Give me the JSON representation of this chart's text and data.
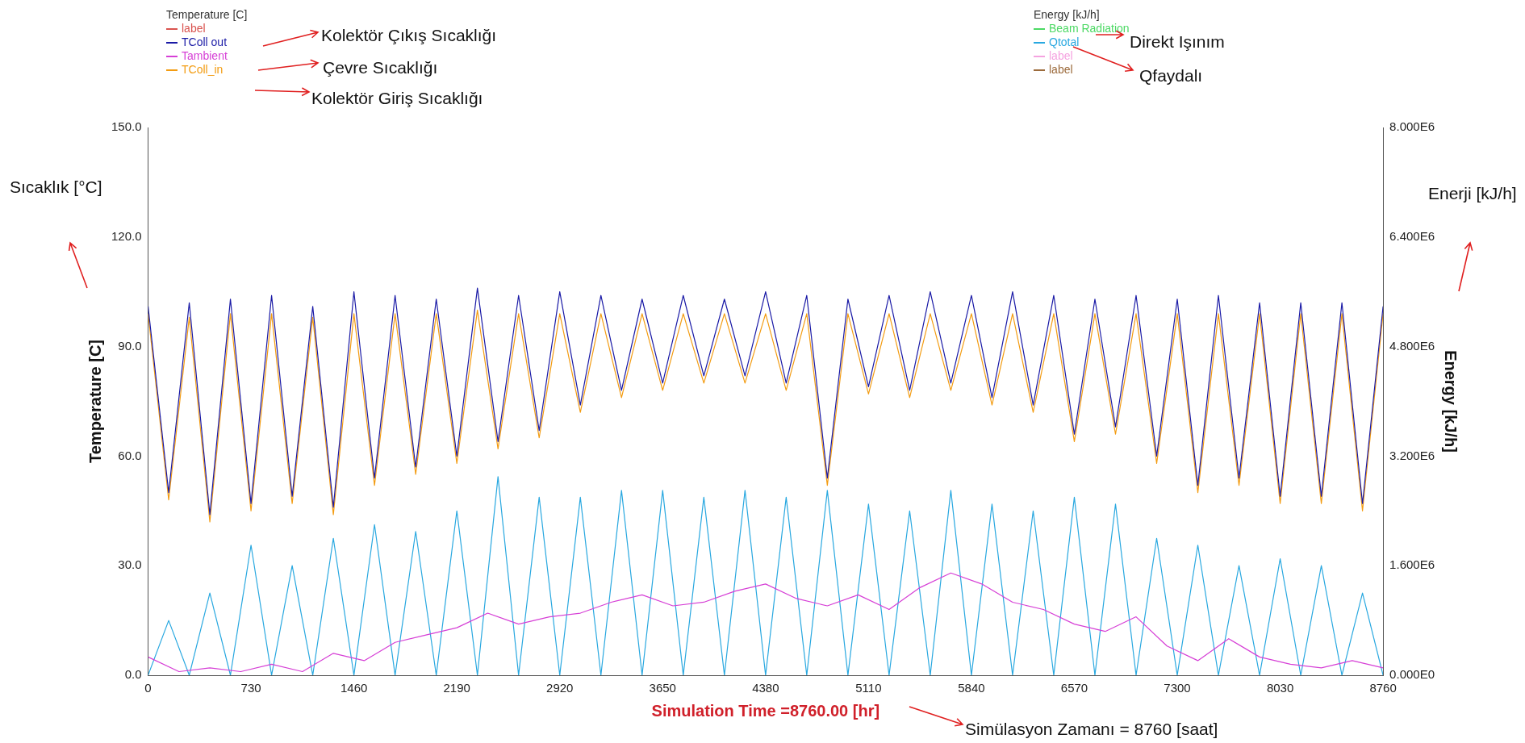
{
  "chart_data": {
    "type": "line",
    "xlabel": "Simulation Time =8760.00 [hr]",
    "ylabel": "Temperature [C]",
    "y2label": "Energy [kJ/h]",
    "legend": "top",
    "legend_title": [
      "Temperature [C]",
      "Energy [kJ/h]"
    ],
    "xlim": [
      0,
      8760
    ],
    "xticks": [
      0,
      730,
      1460,
      2190,
      2920,
      3650,
      4380,
      5110,
      5840,
      6570,
      7300,
      8030,
      8760
    ],
    "ylim": [
      0,
      150
    ],
    "yticks": [
      {
        "value": 0,
        "label": "0.0"
      },
      {
        "value": 30,
        "label": "30.0"
      },
      {
        "value": 60,
        "label": "60.0"
      },
      {
        "value": 90,
        "label": "90.0"
      },
      {
        "value": 120,
        "label": "120.0"
      },
      {
        "value": 150,
        "label": "150.0"
      }
    ],
    "y2lim": [
      0,
      8000000
    ],
    "y2ticks": [
      {
        "value": 0,
        "label": "0.000E0"
      },
      {
        "value": 1600000,
        "label": "1.600E6"
      },
      {
        "value": 3200000,
        "label": "3.200E6"
      },
      {
        "value": 4800000,
        "label": "4.800E6"
      },
      {
        "value": 6400000,
        "label": "6.400E6"
      },
      {
        "value": 8000000,
        "label": "8.000E6"
      }
    ],
    "grid": false,
    "marker": "none",
    "line_style": "solid",
    "annotations": [
      "Kolektör Çıkış Sıcaklığı",
      "Çevre Sıcaklığı",
      "Kolektör Giriş Sıcaklığı",
      "Direkt Işınım",
      "Qfaydalı",
      "Sıcaklık [°C]",
      "Enerji [kJ/h]",
      "Simülasyon Zamanı = 8760 [saat]"
    ],
    "series": [
      {
        "name": "label",
        "color": "#d9534f"
      },
      {
        "name": "TColl out",
        "color": "#1a1aa6",
        "x": [
          0,
          146,
          292,
          438,
          584,
          730,
          876,
          1022,
          1168,
          1314,
          1460,
          1606,
          1752,
          1898,
          2044,
          2190,
          2336,
          2482,
          2628,
          2774,
          2920,
          3066,
          3212,
          3358,
          3504,
          3650,
          3796,
          3942,
          4088,
          4234,
          4380,
          4526,
          4672,
          4818,
          4964,
          5110,
          5256,
          5402,
          5548,
          5694,
          5840,
          5986,
          6132,
          6278,
          6424,
          6570,
          6716,
          6862,
          7008,
          7154,
          7300,
          7446,
          7592,
          7738,
          7884,
          8030,
          8176,
          8322,
          8468,
          8614,
          8760
        ],
        "values": [
          101,
          50,
          102,
          44,
          103,
          47,
          104,
          49,
          101,
          46,
          105,
          54,
          104,
          57,
          103,
          60,
          106,
          64,
          104,
          67,
          105,
          74,
          104,
          78,
          103,
          80,
          104,
          82,
          103,
          82,
          105,
          80,
          104,
          54,
          103,
          79,
          104,
          78,
          105,
          80,
          104,
          76,
          105,
          74,
          104,
          66,
          103,
          68,
          104,
          60,
          103,
          52,
          104,
          54,
          102,
          49,
          102,
          49,
          102,
          47,
          101
        ]
      },
      {
        "name": "Tambient",
        "color": "#d63fd6",
        "x": [
          0,
          219,
          438,
          657,
          876,
          1095,
          1314,
          1533,
          1752,
          1971,
          2190,
          2409,
          2628,
          2847,
          3066,
          3285,
          3504,
          3723,
          3942,
          4161,
          4380,
          4599,
          4818,
          5037,
          5256,
          5475,
          5694,
          5913,
          6132,
          6351,
          6570,
          6789,
          7008,
          7227,
          7446,
          7665,
          7884,
          8103,
          8322,
          8541,
          8760
        ],
        "values": [
          5,
          1,
          2,
          1,
          3,
          1,
          6,
          4,
          9,
          11,
          13,
          17,
          14,
          16,
          17,
          20,
          22,
          19,
          20,
          23,
          25,
          21,
          19,
          22,
          18,
          24,
          28,
          25,
          20,
          18,
          14,
          12,
          16,
          8,
          4,
          10,
          5,
          3,
          2,
          4,
          2
        ]
      },
      {
        "name": "TColl_in",
        "color": "#f39c12",
        "x": [
          0,
          146,
          292,
          438,
          584,
          730,
          876,
          1022,
          1168,
          1314,
          1460,
          1606,
          1752,
          1898,
          2044,
          2190,
          2336,
          2482,
          2628,
          2774,
          2920,
          3066,
          3212,
          3358,
          3504,
          3650,
          3796,
          3942,
          4088,
          4234,
          4380,
          4526,
          4672,
          4818,
          4964,
          5110,
          5256,
          5402,
          5548,
          5694,
          5840,
          5986,
          6132,
          6278,
          6424,
          6570,
          6716,
          6862,
          7008,
          7154,
          7300,
          7446,
          7592,
          7738,
          7884,
          8030,
          8176,
          8322,
          8468,
          8614,
          8760
        ],
        "values": [
          99,
          48,
          98,
          42,
          99,
          45,
          99,
          47,
          98,
          44,
          99,
          52,
          99,
          55,
          99,
          58,
          100,
          62,
          99,
          65,
          99,
          72,
          99,
          76,
          99,
          78,
          99,
          80,
          99,
          80,
          99,
          78,
          99,
          52,
          99,
          77,
          99,
          76,
          99,
          78,
          99,
          74,
          99,
          72,
          99,
          64,
          99,
          66,
          99,
          58,
          99,
          50,
          99,
          52,
          99,
          47,
          99,
          47,
          99,
          45,
          99
        ]
      },
      {
        "name": "Beam  Radiation",
        "color": "#4cd964",
        "axis": "y2"
      },
      {
        "name": "Qtotal",
        "color": "#29a8e0",
        "axis": "y2",
        "x": [
          0,
          146,
          292,
          438,
          584,
          730,
          876,
          1022,
          1168,
          1314,
          1460,
          1606,
          1752,
          1898,
          2044,
          2190,
          2336,
          2482,
          2628,
          2774,
          2920,
          3066,
          3212,
          3358,
          3504,
          3650,
          3796,
          3942,
          4088,
          4234,
          4380,
          4526,
          4672,
          4818,
          4964,
          5110,
          5256,
          5402,
          5548,
          5694,
          5840,
          5986,
          6132,
          6278,
          6424,
          6570,
          6716,
          6862,
          7008,
          7154,
          7300,
          7446,
          7592,
          7738,
          7884,
          8030,
          8176,
          8322,
          8468,
          8614,
          8760
        ],
        "values": [
          0,
          800000,
          0,
          1200000,
          0,
          1900000,
          0,
          1600000,
          0,
          2000000,
          0,
          2200000,
          0,
          2100000,
          0,
          2400000,
          0,
          2900000,
          0,
          2600000,
          0,
          2600000,
          0,
          2700000,
          0,
          2700000,
          0,
          2600000,
          0,
          2700000,
          0,
          2600000,
          0,
          2700000,
          0,
          2500000,
          0,
          2400000,
          0,
          2700000,
          0,
          2500000,
          0,
          2400000,
          0,
          2600000,
          0,
          2500000,
          0,
          2000000,
          0,
          1900000,
          0,
          1600000,
          0,
          1700000,
          0,
          1600000,
          0,
          1200000,
          0
        ]
      },
      {
        "name": "label",
        "color": "#f5a3e0",
        "axis": "y2"
      },
      {
        "name": "label",
        "color": "#9c6b3c",
        "axis": "y2"
      }
    ]
  }
}
